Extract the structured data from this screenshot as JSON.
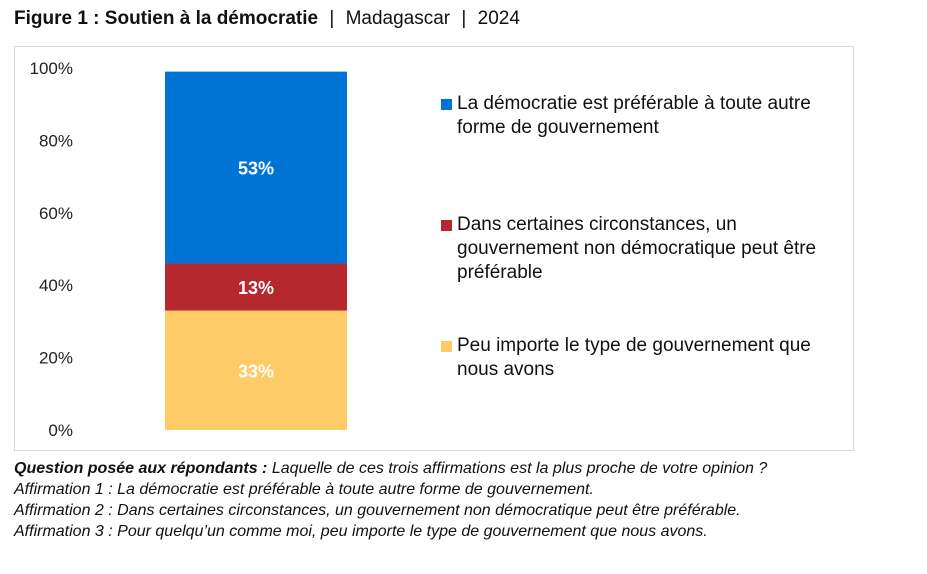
{
  "figure": {
    "title_bold": "Figure 1 : Soutien à la démocratie",
    "country": "Madagascar",
    "year": "2024",
    "separator": "|"
  },
  "chart_data": {
    "type": "bar",
    "stacked": true,
    "categories": [
      ""
    ],
    "series": [
      {
        "name": "Peu importe le type de gouvernement que nous avons",
        "values": [
          33
        ],
        "label": "33%",
        "color": "#FFCB67"
      },
      {
        "name": "Dans certaines circonstances, un gouvernement non démocratique peut être préférable",
        "values": [
          13
        ],
        "label": "13%",
        "color": "#B5282E"
      },
      {
        "name": "La démocratie est préférable à toute autre forme de gouvernement",
        "values": [
          53
        ],
        "label": "53%",
        "color": "#0074D4"
      }
    ],
    "ylim": [
      0,
      100
    ],
    "yticks": [
      "0%",
      "20%",
      "40%",
      "60%",
      "80%",
      "100%"
    ],
    "ytick_values": [
      0,
      20,
      40,
      60,
      80,
      100
    ],
    "grid": false,
    "legend_position": "right"
  },
  "legend": [
    {
      "label": "La démocratie est préférable à toute autre forme de gouvernement",
      "color": "#0074D4"
    },
    {
      "label": "Dans certaines circonstances, un gouvernement non démocratique peut être préférable",
      "color": "#B5282E"
    },
    {
      "label": "Peu importe le type de gouvernement que nous avons",
      "color": "#FFCB67"
    }
  ],
  "notes": {
    "question_label": "Question posée aux répondants :",
    "question_text": "Laquelle de ces trois affirmations est la plus proche de votre opinion ?",
    "affirmations": [
      "Affirmation 1 : La démocratie est préférable à toute autre forme de gouvernement.",
      "Affirmation 2 : Dans certaines circonstances, un gouvernement non démocratique peut être préférable.",
      "Affirmation 3 : Pour quelqu’un comme moi, peu importe le type de gouvernement que nous avons."
    ]
  }
}
